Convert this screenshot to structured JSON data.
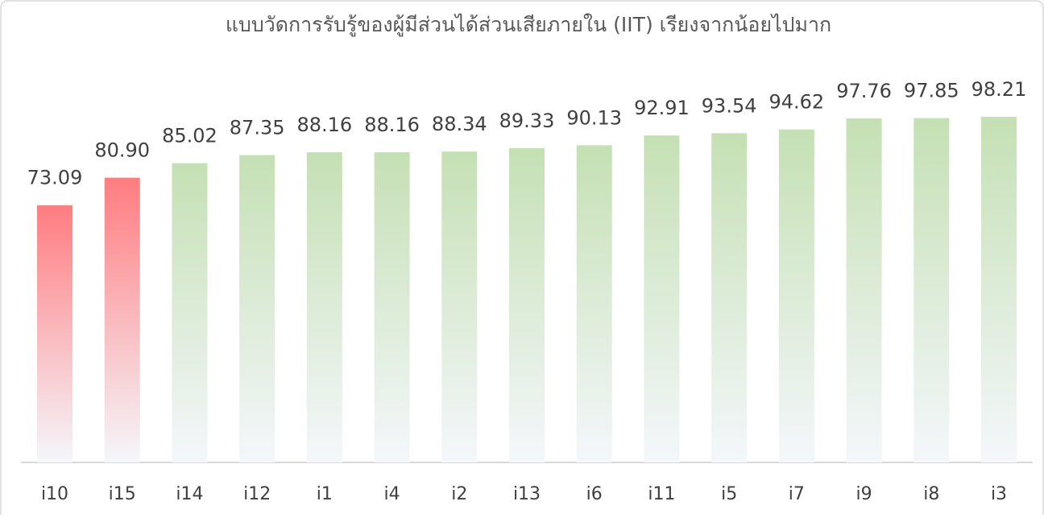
{
  "chart_data": {
    "type": "bar",
    "title": "แบบวัดการรับรู้ของผู้มีส่วนได้ส่วนเสียภายใน (IIT) เรียงจากน้อยไปมาก",
    "categories": [
      "i10",
      "i15",
      "i14",
      "i12",
      "i1",
      "i4",
      "i2",
      "i13",
      "i6",
      "i11",
      "i5",
      "i7",
      "i9",
      "i8",
      "i3"
    ],
    "values": [
      73.09,
      80.9,
      85.02,
      87.35,
      88.16,
      88.16,
      88.34,
      89.33,
      90.13,
      92.91,
      93.54,
      94.62,
      97.76,
      97.85,
      98.21
    ],
    "value_labels": [
      "73.09",
      "80.90",
      "85.02",
      "87.35",
      "88.16",
      "88.16",
      "88.34",
      "89.33",
      "90.13",
      "92.91",
      "93.54",
      "94.62",
      "97.76",
      "97.85",
      "98.21"
    ],
    "colors": [
      "#ff7c80",
      "#ff7c80",
      "#c5e0b4",
      "#c5e0b4",
      "#c5e0b4",
      "#c5e0b4",
      "#c5e0b4",
      "#c5e0b4",
      "#c5e0b4",
      "#c5e0b4",
      "#c5e0b4",
      "#c5e0b4",
      "#c5e0b4",
      "#c5e0b4",
      "#c5e0b4"
    ]
  }
}
